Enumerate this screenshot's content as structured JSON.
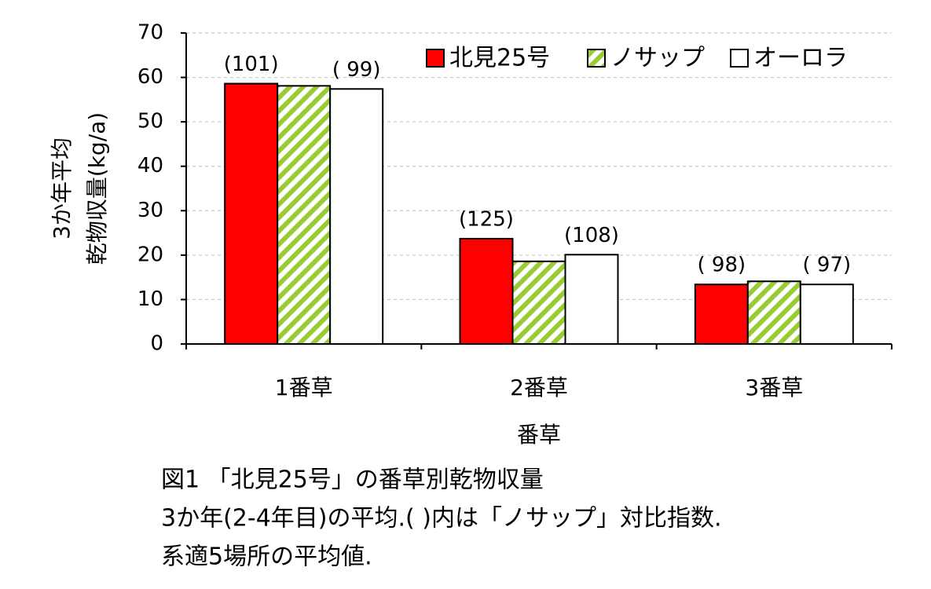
{
  "chart_data": {
    "type": "bar",
    "categories": [
      "1番草",
      "2番草",
      "3番草"
    ],
    "x_label": "番草",
    "y_label": [
      "3か年平均",
      "乾物収量(kg/a)"
    ],
    "series": [
      {
        "name": "北見25号",
        "color": "#ff0000",
        "values": [
          58.6,
          23.7,
          13.4
        ],
        "annotations": [
          "(101)",
          "(125)",
          "( 98)"
        ]
      },
      {
        "name": "ノサップ",
        "color": "#99cc33",
        "hatch": true,
        "values": [
          58.1,
          18.6,
          14.1
        ]
      },
      {
        "name": "オーロラ",
        "color": "#ffffff",
        "values": [
          57.4,
          20.1,
          13.4
        ],
        "annotations": [
          "( 99)",
          "(108)",
          "( 97)"
        ]
      }
    ],
    "ylim": [
      0,
      70
    ],
    "yticks": [
      0,
      10,
      20,
      30,
      40,
      50,
      60,
      70
    ],
    "grid": true,
    "legend": "top-right",
    "caption": [
      "図1 「北見25号」の番草別乾物収量",
      "3か年(2-4年目)の平均.( )内は「ノサップ」対比指数.",
      "系適5場所の平均値."
    ]
  }
}
